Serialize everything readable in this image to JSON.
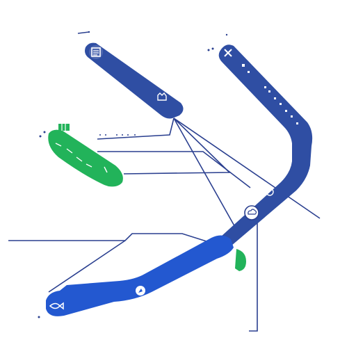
{
  "colors": {
    "background": "#ffffff",
    "navy_band": "#2f4ea3",
    "royal_band": "#2358d0",
    "green_band": "#22b35a",
    "line": "#2a3f8f",
    "icon_fill": "#ffffff"
  },
  "icons": {
    "navy_band_start": "document-icon",
    "navy_band_end": "hand-icon",
    "right_band_start": "close-icon",
    "right_band_mid": "sync-icon",
    "junction": "cloud-icon",
    "royal_band_start": "fish-icon",
    "royal_band_mid": "compass-icon",
    "green_band_tag": "grid-icon"
  },
  "labels": {
    "right_band_text": "",
    "green_band_text": "",
    "dotted_text": ""
  }
}
